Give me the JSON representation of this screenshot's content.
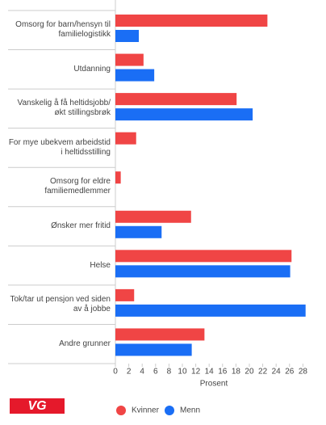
{
  "chart_data": {
    "type": "hbar",
    "categories": [
      "Omsorg for barn/hensyn til familielogistikk",
      "Utdanning",
      "Vanskelig å få heltidsjobb/økt stillingsbrøk",
      "For mye ubekvem arbeidstid i heltidsstilling",
      "Omsorg for eldre familiemedlemmer",
      "Ønsker mer fritid",
      "Helse",
      "Tok/tar ut pensjon ved siden av å jobbe",
      "Andre grunner"
    ],
    "series": [
      {
        "name": "Kvinner",
        "color": "#f04545",
        "values": [
          22.7,
          4.2,
          18.1,
          3.1,
          0.8,
          11.3,
          26.3,
          2.8,
          13.3
        ]
      },
      {
        "name": "Menn",
        "color": "#1a6ef5",
        "values": [
          3.5,
          5.8,
          20.5,
          null,
          null,
          6.9,
          26.1,
          28.4,
          11.4
        ]
      }
    ],
    "x_label": "Prosent",
    "xlim": [
      0,
      29.4
    ],
    "xticks": [
      0,
      2,
      4,
      6,
      8,
      10,
      12,
      14,
      16,
      18,
      20,
      22,
      24,
      26,
      28
    ]
  },
  "logo": {
    "text": "VG"
  }
}
